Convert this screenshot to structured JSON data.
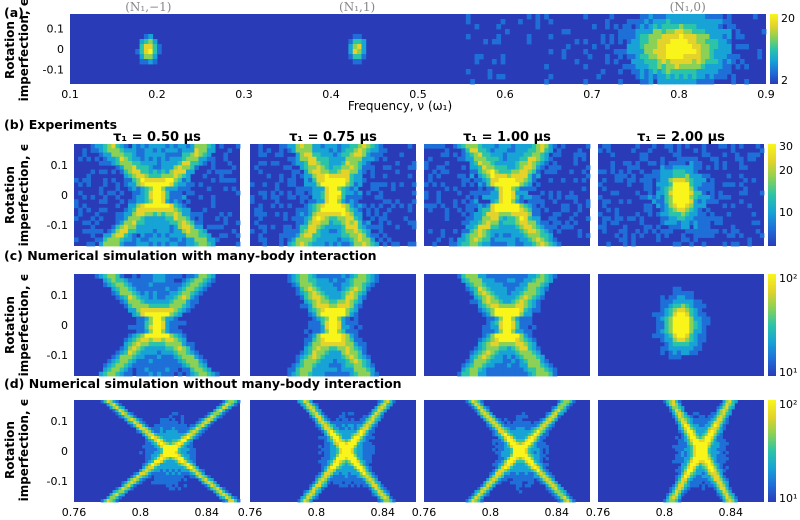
{
  "colors": {
    "bg": "#2a3bb8",
    "cmap": [
      "#2a3bb8",
      "#1f6fd8",
      "#17a3d6",
      "#2cc4a8",
      "#8ad156",
      "#e3d32a",
      "#f9f51b"
    ]
  },
  "chart_data": [
    {
      "type": "heatmap",
      "panel": "(a)",
      "peak_labels": [
        {
          "text": "(N₁,−1)",
          "x": 0.19
        },
        {
          "text": "(N₁,1)",
          "x": 0.43
        },
        {
          "text": "(N₁,0)",
          "x": 0.81
        }
      ],
      "xlabel": "Frequency, ν (ω₁)",
      "ylabel": [
        "Rotation",
        "imperfection, ϵ"
      ],
      "xlim": [
        0.1,
        0.9
      ],
      "ylim": [
        -0.17,
        0.17
      ],
      "xticks": [
        "0.1",
        "0.2",
        "0.3",
        "0.4",
        "0.5",
        "0.6",
        "0.7",
        "0.8",
        "0.9"
      ],
      "yticks": [
        "0.1",
        "0",
        "-0.1"
      ],
      "colorbar_ticks": [
        "20",
        "2"
      ],
      "features": [
        {
          "x": 0.19,
          "y": 0.0,
          "sx": 0.006,
          "sy": 0.035,
          "a": 1.0
        },
        {
          "x": 0.43,
          "y": 0.0,
          "sx": 0.006,
          "sy": 0.035,
          "a": 0.8
        },
        {
          "x": 0.8,
          "y": 0.0,
          "sx": 0.03,
          "sy": 0.09,
          "a": 1.0
        }
      ]
    },
    {
      "type": "heatmap",
      "panel": "(b)",
      "title": "Experiments",
      "columns": [
        "τ₁ = 0.50 μs",
        "τ₁ = 0.75 μs",
        "τ₁ = 1.00 μs",
        "τ₁ = 2.00 μs"
      ],
      "ylabel": [
        "Rotation",
        "imperfection, ϵ"
      ],
      "yticks": [
        "0.1",
        "0",
        "-0.1"
      ],
      "colorbar_ticks": [
        "30",
        "20",
        "10"
      ],
      "style": [
        "x",
        "x",
        "x",
        "blob"
      ]
    },
    {
      "type": "heatmap",
      "panel": "(c)",
      "title": "Numerical simulation with many-body interaction",
      "ylabel": [
        "Rotation",
        "imperfection, ϵ"
      ],
      "yticks": [
        "0.1",
        "0",
        "-0.1"
      ],
      "colorbar_ticks": [
        "10²",
        "10¹"
      ],
      "style": [
        "x",
        "x",
        "x",
        "blob"
      ]
    },
    {
      "type": "heatmap",
      "panel": "(d)",
      "title": "Numerical simulation without many-body interaction",
      "ylabel": [
        "Rotation",
        "imperfection, ϵ"
      ],
      "yticks": [
        "0.1",
        "0",
        "-0.1"
      ],
      "xticks": [
        "0.76",
        "0.8",
        "0.84"
      ],
      "xlim": [
        0.76,
        0.86
      ],
      "colorbar_ticks": [
        "10²",
        "10¹"
      ],
      "style": [
        "xsharp",
        "xsharp",
        "xsharp",
        "xsharp"
      ]
    }
  ]
}
